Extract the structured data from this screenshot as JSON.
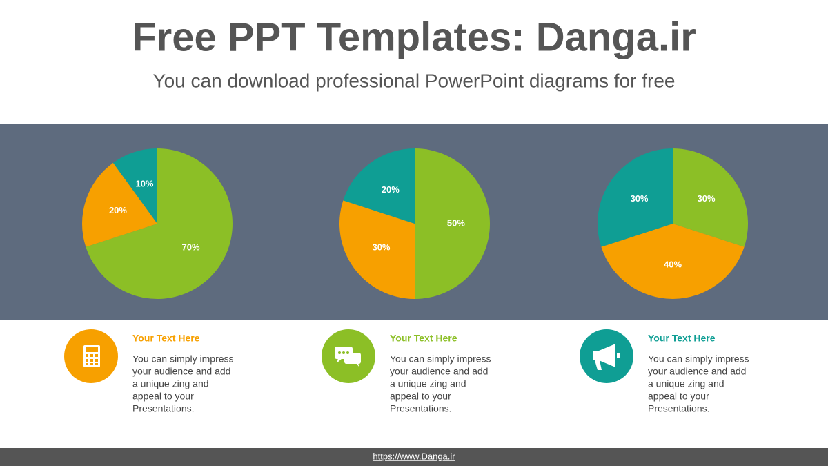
{
  "header": {
    "title": "Free PPT Templates: Danga.ir",
    "subtitle": "You can download professional PowerPoint diagrams for free"
  },
  "chart_data": [
    {
      "type": "pie",
      "values": [
        70,
        20,
        10
      ],
      "value_labels": [
        "70%",
        "20%",
        "10%"
      ],
      "colors": [
        "#8cbf26",
        "#f7a000",
        "#0f9e94"
      ]
    },
    {
      "type": "pie",
      "values": [
        50,
        30,
        20
      ],
      "value_labels": [
        "50%",
        "30%",
        "20%"
      ],
      "colors": [
        "#8cbf26",
        "#f7a000",
        "#0f9e94"
      ]
    },
    {
      "type": "pie",
      "values": [
        30,
        40,
        30
      ],
      "value_labels": [
        "30%",
        "40%",
        "30%"
      ],
      "colors": [
        "#8cbf26",
        "#f7a000",
        "#0f9e94"
      ]
    }
  ],
  "cards": [
    {
      "title": "Your Text Here",
      "color": "#f7a000",
      "lines": [
        "You can simply impress",
        "your audience and add",
        "a unique zing and",
        "appeal to your",
        "Presentations."
      ]
    },
    {
      "title": "Your Text Here",
      "color": "#8cbf26",
      "lines": [
        "You can simply impress",
        "your audience and add",
        "a unique zing and",
        "appeal to your",
        "Presentations."
      ]
    },
    {
      "title": "Your Text Here",
      "color": "#0f9e94",
      "lines": [
        "You can simply impress",
        "your audience and add",
        "a unique zing and",
        "appeal to your",
        "Presentations."
      ]
    }
  ],
  "footer": "https://www.Danga.ir"
}
